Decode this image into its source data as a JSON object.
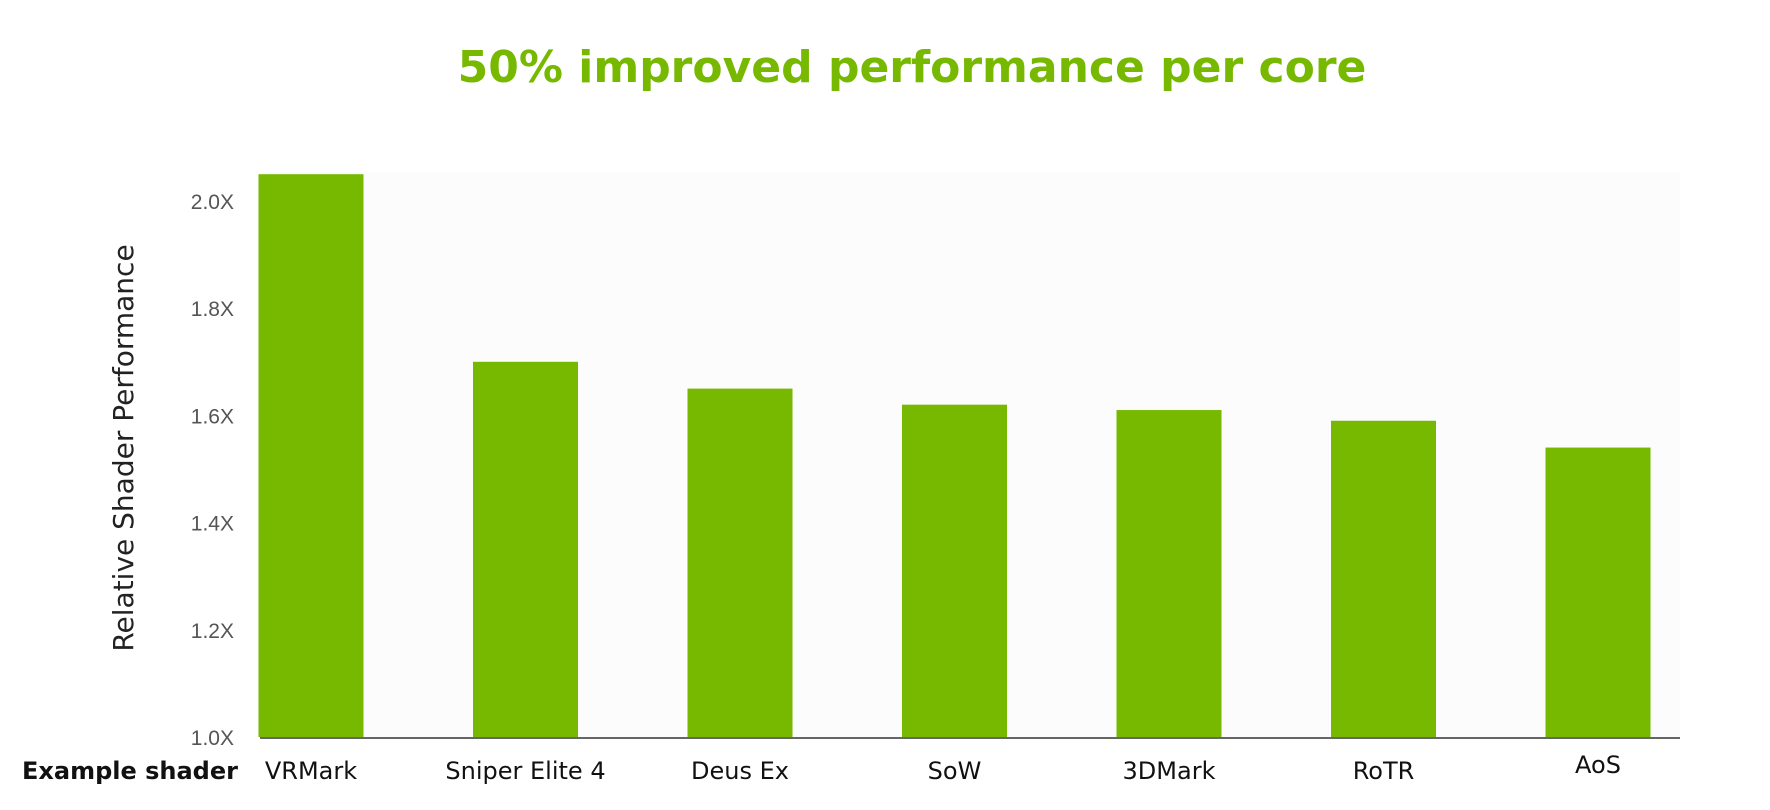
{
  "chart_data": {
    "type": "bar",
    "title": "50% improved performance per core",
    "ylabel": "Relative Shader Performance",
    "row_label": "Example shader",
    "categories": [
      "VRMark",
      "Sniper Elite 4",
      "Deus Ex",
      "SoW",
      "3DMark",
      "RoTR",
      "AoS"
    ],
    "values": [
      2.05,
      1.7,
      1.65,
      1.62,
      1.61,
      1.59,
      1.54
    ],
    "y_ticks": [
      "1.0X",
      "1.2X",
      "1.4X",
      "1.6X",
      "1.8X",
      "2.0X"
    ],
    "ylim": [
      1.0,
      2.0
    ],
    "grid": false,
    "bar_color": "#76b900",
    "title_color": "#76b900",
    "plot_background": "#fcfcfc"
  }
}
